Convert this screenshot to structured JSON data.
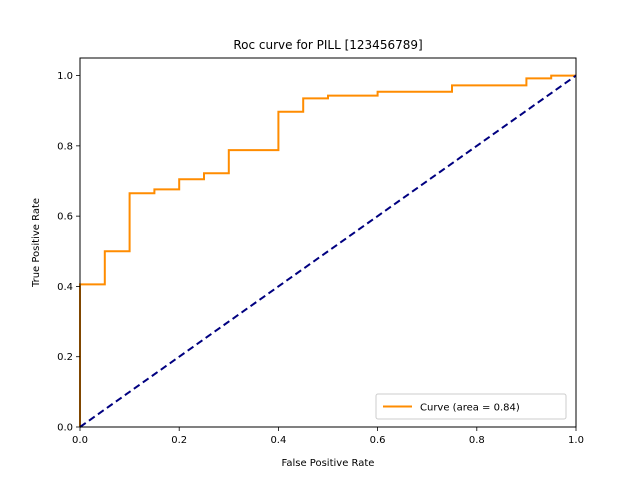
{
  "chart_data": {
    "type": "line",
    "title": "Roc curve for PILL [123456789]",
    "xlabel": "False Positive Rate",
    "ylabel": "True Positive Rate",
    "xlim": [
      0.0,
      1.0
    ],
    "ylim": [
      0.0,
      1.05
    ],
    "grid": false,
    "legend_position": "lower-right",
    "x_ticks": [
      "0.0",
      "0.2",
      "0.4",
      "0.6",
      "0.8",
      "1.0"
    ],
    "y_ticks": [
      "0.0",
      "0.2",
      "0.4",
      "0.6",
      "0.8",
      "1.0"
    ],
    "series": [
      {
        "name": "Curve (area = 0.84)",
        "style": "step",
        "color": "#ff8c00",
        "x": [
          0.0,
          0.0,
          0.05,
          0.05,
          0.1,
          0.1,
          0.15,
          0.15,
          0.2,
          0.2,
          0.25,
          0.25,
          0.3,
          0.3,
          0.4,
          0.4,
          0.45,
          0.45,
          0.5,
          0.5,
          0.6,
          0.6,
          0.75,
          0.75,
          0.9,
          0.9,
          0.95,
          0.95,
          1.0
        ],
        "y": [
          0.0,
          0.406,
          0.406,
          0.5,
          0.5,
          0.665,
          0.665,
          0.676,
          0.676,
          0.705,
          0.705,
          0.722,
          0.722,
          0.788,
          0.788,
          0.897,
          0.897,
          0.935,
          0.935,
          0.943,
          0.943,
          0.954,
          0.954,
          0.972,
          0.972,
          0.992,
          0.992,
          1.0,
          1.0
        ]
      },
      {
        "name": "",
        "style": "dashed",
        "color": "#000080",
        "x": [
          0.0,
          1.0
        ],
        "y": [
          0.0,
          1.0
        ]
      }
    ]
  }
}
